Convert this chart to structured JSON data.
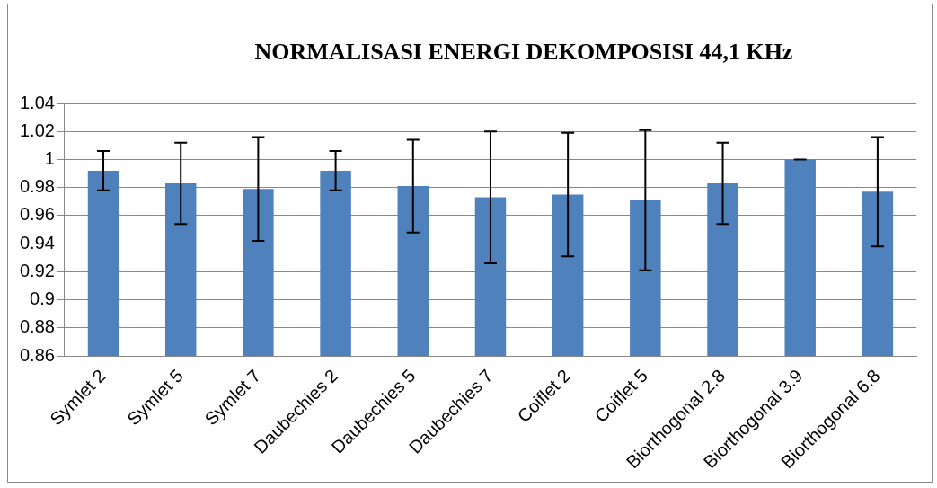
{
  "chart_data": {
    "type": "bar",
    "title": "NORMALISASI ENERGI DEKOMPOSISI 44,1 KHz",
    "categories": [
      "Symlet 2",
      "Symlet 5",
      "Symlet 7",
      "Daubechies 2",
      "Daubechies 5",
      "Daubechies 7",
      "Coiflet 2",
      "Coiflet 5",
      "Biorthogonal 2.8",
      "Biorthogonal 3.9",
      "Biorthogonal 6.8"
    ],
    "values": [
      0.992,
      0.983,
      0.979,
      0.992,
      0.981,
      0.973,
      0.975,
      0.971,
      0.983,
      1.0,
      0.977
    ],
    "errors": [
      0.014,
      0.029,
      0.037,
      0.014,
      0.033,
      0.047,
      0.044,
      0.05,
      0.029,
      0,
      0.039
    ],
    "color": "#4f81bd",
    "ylim": [
      0.86,
      1.04
    ],
    "yticks": [
      0.86,
      0.88,
      0.9,
      0.92,
      0.94,
      0.96,
      0.98,
      1,
      1.02,
      1.04
    ],
    "grid": "y"
  }
}
